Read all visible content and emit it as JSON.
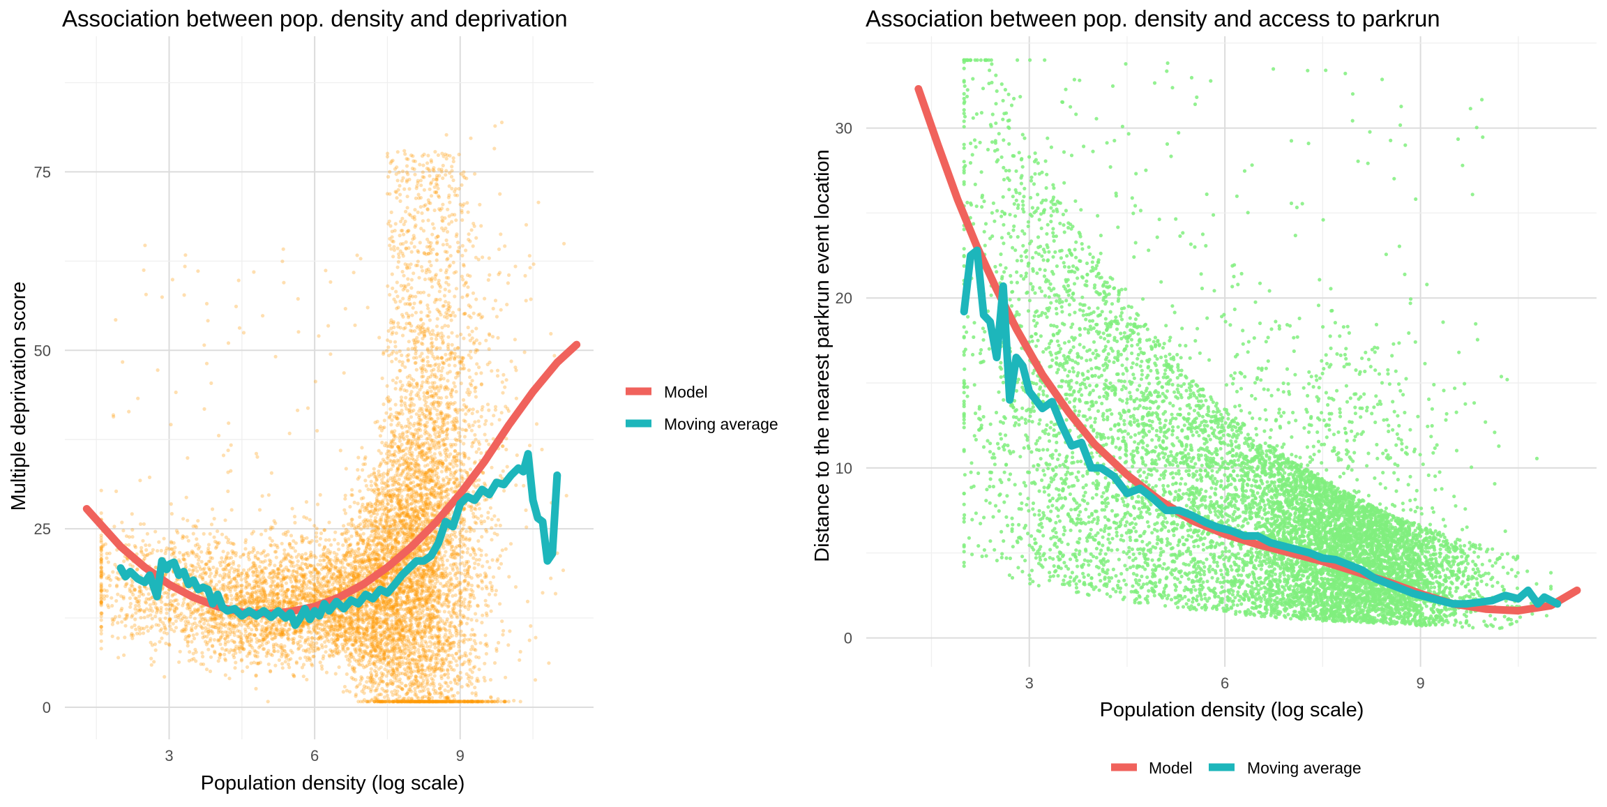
{
  "colors": {
    "left_points": "#FF9D0A",
    "right_points": "#80EE7E",
    "model": "#F0625C",
    "moving_average": "#1DB6BB",
    "grid_major": "#DCDCDC",
    "grid_minor": "#EFEFEF"
  },
  "legend_left": {
    "items": [
      {
        "label": "Model",
        "color": "#F0625C"
      },
      {
        "label": "Moving average",
        "color": "#1DB6BB"
      }
    ]
  },
  "legend_bottom": {
    "items": [
      {
        "label": "Model",
        "color": "#F0625C"
      },
      {
        "label": "Moving average",
        "color": "#1DB6BB"
      }
    ]
  },
  "chart_data": [
    {
      "type": "scatter",
      "title": "Association between pop. density and deprivation",
      "xlabel": "Population density (log scale)",
      "ylabel": "Multiple deprivation score",
      "xlim": [
        0.85,
        11.75
      ],
      "ylim": [
        -4.5,
        94
      ],
      "x_ticks": [
        3,
        6,
        9
      ],
      "x_tick_labels": [
        "3",
        "6",
        "9"
      ],
      "y_ticks": [
        0,
        25,
        50,
        75
      ],
      "y_tick_labels": [
        "0",
        "25",
        "50",
        "75"
      ],
      "grid": true,
      "legend_position": "right",
      "points_color": "#FF9D0A",
      "series": [
        {
          "name": "Model",
          "kind": "line",
          "x": [
            1.3,
            2.0,
            2.5,
            3.0,
            3.5,
            4.0,
            4.5,
            5.0,
            5.5,
            6.0,
            6.5,
            7.0,
            7.5,
            8.0,
            8.5,
            9.0,
            9.5,
            10.0,
            10.5,
            11.0,
            11.4
          ],
          "y": [
            27.8,
            22.5,
            19.6,
            17.2,
            15.4,
            14.1,
            13.3,
            13.1,
            13.4,
            14.1,
            15.4,
            17.2,
            19.6,
            22.5,
            25.9,
            29.9,
            34.4,
            39.5,
            44.2,
            48.3,
            50.8
          ]
        },
        {
          "name": "Moving average",
          "kind": "line",
          "x": [
            2.0,
            2.1,
            2.2,
            2.35,
            2.5,
            2.6,
            2.75,
            2.85,
            2.95,
            3.0,
            3.1,
            3.2,
            3.3,
            3.4,
            3.5,
            3.6,
            3.7,
            3.8,
            3.9,
            4.0,
            4.1,
            4.2,
            4.35,
            4.5,
            4.65,
            4.8,
            4.95,
            5.1,
            5.25,
            5.4,
            5.5,
            5.6,
            5.7,
            5.8,
            5.9,
            6.0,
            6.1,
            6.2,
            6.3,
            6.45,
            6.6,
            6.75,
            6.9,
            7.05,
            7.2,
            7.35,
            7.5,
            7.65,
            7.8,
            7.95,
            8.1,
            8.25,
            8.4,
            8.55,
            8.7,
            8.85,
            9.0,
            9.15,
            9.3,
            9.45,
            9.6,
            9.75,
            9.9,
            10.05,
            10.2,
            10.3,
            10.4,
            10.5,
            10.6,
            10.7,
            10.8,
            10.9,
            11.0
          ],
          "y": [
            19.5,
            18.3,
            19.0,
            18.0,
            17.5,
            18.5,
            15.5,
            20.5,
            19.3,
            20.0,
            20.3,
            18.5,
            19.0,
            17.2,
            17.8,
            16.5,
            16.8,
            16.5,
            14.5,
            15.8,
            14.0,
            13.5,
            13.8,
            12.8,
            13.5,
            12.8,
            13.5,
            12.6,
            13.5,
            12.5,
            13.2,
            11.5,
            12.5,
            13.8,
            12.3,
            13.5,
            12.8,
            14.5,
            13.5,
            14.8,
            13.8,
            15.0,
            14.5,
            15.8,
            15.2,
            16.5,
            16.0,
            17.2,
            18.5,
            19.5,
            20.5,
            20.5,
            21.2,
            23.0,
            26.0,
            25.3,
            28.5,
            29.5,
            29.0,
            30.5,
            29.8,
            31.5,
            31.2,
            32.5,
            33.5,
            33.0,
            35.5,
            29.0,
            26.5,
            26.0,
            20.5,
            21.5,
            32.5
          ]
        }
      ]
    },
    {
      "type": "scatter",
      "title": "Association between pop. density and access to parkrun",
      "xlabel": "Population density (log scale)",
      "ylabel": "Distance to the nearest parkrun event location",
      "xlim": [
        0.5,
        11.7
      ],
      "ylim": [
        -1.7,
        35.4
      ],
      "x_ticks": [
        3,
        6,
        9
      ],
      "x_tick_labels": [
        "3",
        "6",
        "9"
      ],
      "y_ticks": [
        0,
        10,
        20,
        30
      ],
      "y_tick_labels": [
        "0",
        "10",
        "20",
        "30"
      ],
      "grid": true,
      "legend_position": "bottom",
      "points_color": "#80EE7E",
      "series": [
        {
          "name": "Model",
          "kind": "line",
          "x": [
            1.3,
            1.6,
            1.9,
            2.2,
            2.5,
            2.8,
            3.2,
            3.6,
            4.0,
            4.5,
            5.0,
            5.5,
            6.0,
            6.5,
            7.0,
            7.5,
            8.0,
            8.5,
            9.0,
            9.5,
            10.0,
            10.5,
            11.0,
            11.4
          ],
          "y": [
            32.3,
            29.0,
            25.8,
            23.0,
            20.5,
            18.2,
            15.5,
            13.3,
            11.4,
            9.6,
            8.1,
            6.9,
            6.1,
            5.5,
            5.0,
            4.5,
            3.9,
            3.3,
            2.6,
            2.0,
            1.7,
            1.6,
            1.9,
            2.8
          ]
        },
        {
          "name": "Moving average",
          "kind": "line",
          "x": [
            2.0,
            2.1,
            2.2,
            2.3,
            2.4,
            2.5,
            2.6,
            2.7,
            2.8,
            2.9,
            3.0,
            3.1,
            3.2,
            3.35,
            3.5,
            3.65,
            3.8,
            3.95,
            4.1,
            4.3,
            4.5,
            4.7,
            4.9,
            5.1,
            5.3,
            5.5,
            5.7,
            5.9,
            6.1,
            6.3,
            6.5,
            6.7,
            6.9,
            7.1,
            7.3,
            7.5,
            7.7,
            7.9,
            8.1,
            8.3,
            8.5,
            8.7,
            8.9,
            9.1,
            9.3,
            9.5,
            9.7,
            9.9,
            10.1,
            10.3,
            10.5,
            10.65,
            10.8,
            10.9,
            11.0,
            11.1
          ],
          "y": [
            19.2,
            22.5,
            22.8,
            19.0,
            18.6,
            16.5,
            20.7,
            14.0,
            16.5,
            16.0,
            14.5,
            14.0,
            13.5,
            13.9,
            12.5,
            11.3,
            11.5,
            10.0,
            10.0,
            9.5,
            8.5,
            8.8,
            8.2,
            7.5,
            7.5,
            7.2,
            6.8,
            6.5,
            6.3,
            6.0,
            6.0,
            5.6,
            5.4,
            5.2,
            5.0,
            4.7,
            4.6,
            4.3,
            4.0,
            3.5,
            3.2,
            2.9,
            2.6,
            2.4,
            2.2,
            2.0,
            2.0,
            2.1,
            2.2,
            2.5,
            2.3,
            2.8,
            2.0,
            2.4,
            2.2,
            2.0
          ]
        }
      ]
    }
  ]
}
